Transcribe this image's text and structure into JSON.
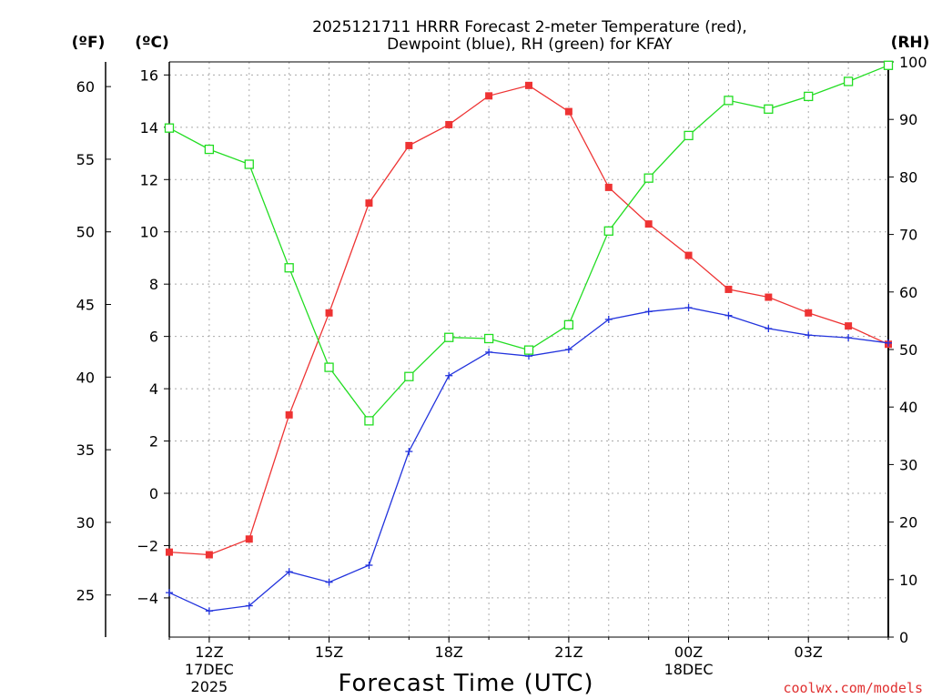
{
  "chart_data": {
    "type": "line",
    "title": [
      "2025121711 HRRR Forecast 2-meter Temperature (red),",
      "Dewpoint (blue), RH (green) for KFAY"
    ],
    "xlabel": "Forecast Time (UTC)",
    "units": {
      "fahrenheit": "(ºF)",
      "celsius": "(ºC)",
      "rh": "(RH)"
    },
    "x": [
      "11Z",
      "12Z",
      "13Z",
      "14Z",
      "15Z",
      "16Z",
      "17Z",
      "18Z",
      "19Z",
      "20Z",
      "21Z",
      "22Z",
      "23Z",
      "00Z",
      "01Z",
      "02Z",
      "03Z",
      "04Z",
      "05Z"
    ],
    "x_ticks": [
      {
        "hour": "12Z",
        "lines": [
          "12Z",
          "17DEC",
          "2025"
        ]
      },
      {
        "hour": "15Z",
        "lines": [
          "15Z"
        ]
      },
      {
        "hour": "18Z",
        "lines": [
          "18Z"
        ]
      },
      {
        "hour": "21Z",
        "lines": [
          "21Z"
        ]
      },
      {
        "hour": "00Z",
        "lines": [
          "00Z",
          "18DEC"
        ]
      },
      {
        "hour": "03Z",
        "lines": [
          "03Z"
        ]
      }
    ],
    "axes": {
      "celsius": {
        "min": -5.5,
        "max": 16.5,
        "ticks": [
          -4,
          -2,
          0,
          2,
          4,
          6,
          8,
          10,
          12,
          14,
          16
        ]
      },
      "fahrenheit": {
        "ticks": [
          25,
          30,
          35,
          40,
          45,
          50,
          55,
          60
        ]
      },
      "rh": {
        "min": 0,
        "max": 100,
        "ticks": [
          0,
          10,
          20,
          30,
          40,
          50,
          60,
          70,
          80,
          90,
          100
        ]
      }
    },
    "grid": true,
    "series": [
      {
        "name": "Temperature",
        "axis": "celsius",
        "color": "#ee3333",
        "marker": "filled-square",
        "values": [
          -2.25,
          -2.35,
          -1.75,
          3.0,
          6.9,
          11.1,
          13.3,
          14.1,
          15.2,
          15.6,
          14.6,
          11.7,
          10.3,
          9.1,
          7.8,
          7.5,
          6.9,
          6.4,
          5.7
        ]
      },
      {
        "name": "Dewpoint",
        "axis": "celsius",
        "color": "#2233dd",
        "marker": "plus",
        "values": [
          -3.8,
          -4.5,
          -4.3,
          -3.0,
          -3.4,
          -2.75,
          1.6,
          4.5,
          5.4,
          5.25,
          5.5,
          6.65,
          6.95,
          7.1,
          6.8,
          6.3,
          6.05,
          5.95,
          5.75
        ]
      },
      {
        "name": "RH",
        "axis": "rh",
        "color": "#22dd22",
        "marker": "open-square",
        "values": [
          88.5,
          84.8,
          82.2,
          64.2,
          46.9,
          37.6,
          45.3,
          52.1,
          51.9,
          49.9,
          54.3,
          70.6,
          79.8,
          87.2,
          93.3,
          91.8,
          94.0,
          96.6,
          99.4
        ]
      }
    ],
    "credit": "coolwx.com/models"
  }
}
